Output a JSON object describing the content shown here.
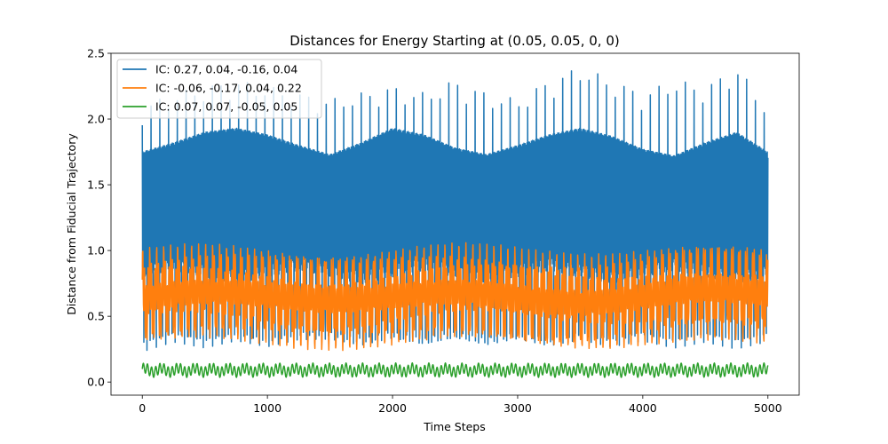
{
  "chart_data": {
    "type": "line",
    "title": "Distances for Energy Starting at (0.05, 0.05, 0, 0)",
    "xlabel": "Time Steps",
    "ylabel": "Distance from Fiducial Trajectory",
    "xlim": [
      -250,
      5250
    ],
    "ylim": [
      -0.1,
      2.5
    ],
    "xticks": [
      0,
      1000,
      2000,
      3000,
      4000,
      5000
    ],
    "xtick_labels": [
      "0",
      "1000",
      "2000",
      "3000",
      "4000",
      "5000"
    ],
    "yticks": [
      0.0,
      0.5,
      1.0,
      1.5,
      2.0,
      2.5
    ],
    "ytick_labels": [
      "0.0",
      "0.5",
      "1.0",
      "1.5",
      "2.0",
      "2.5"
    ],
    "grid": false,
    "legend_position": "top-left",
    "series": [
      {
        "name": "IC: 0.27, 0.04, -0.16, 0.04",
        "color": "#1f77b4",
        "x": [
          0,
          250,
          500,
          750,
          1000,
          1250,
          1500,
          1750,
          2000,
          2250,
          2500,
          2750,
          3000,
          3250,
          3500,
          3750,
          4000,
          4250,
          4500,
          4750,
          5000
        ],
        "y_max": [
          2.1,
          2.2,
          2.25,
          2.3,
          2.25,
          2.2,
          2.15,
          2.2,
          2.25,
          2.2,
          2.3,
          2.2,
          2.15,
          2.3,
          2.4,
          2.3,
          2.2,
          2.3,
          2.25,
          2.4,
          2.1
        ],
        "y_envelope_high": [
          1.75,
          1.82,
          1.9,
          1.93,
          1.88,
          1.8,
          1.73,
          1.82,
          1.93,
          1.88,
          1.78,
          1.73,
          1.8,
          1.88,
          1.93,
          1.87,
          1.77,
          1.72,
          1.82,
          1.9,
          1.75
        ],
        "y_band_low": [
          0.85,
          0.9,
          0.85,
          0.8,
          0.85,
          0.9,
          0.85,
          0.8,
          0.85,
          0.9,
          0.85,
          0.8,
          0.85,
          0.9,
          0.85,
          0.8,
          0.85,
          0.9,
          0.85,
          0.8,
          0.85
        ],
        "y_min": [
          0.23,
          0.3,
          0.25,
          0.3,
          0.25,
          0.3,
          0.3,
          0.25,
          0.3,
          0.25,
          0.3,
          0.25,
          0.3,
          0.25,
          0.3,
          0.25,
          0.3,
          0.25,
          0.3,
          0.25,
          0.3
        ]
      },
      {
        "name": "IC: -0.06, -0.17, 0.04, 0.22",
        "color": "#ff7f0e",
        "x": [
          0,
          5000
        ],
        "y_min": [
          0.23,
          0.25
        ],
        "y_max": [
          1.05,
          1.08
        ],
        "y_mid": [
          0.65,
          0.65
        ]
      },
      {
        "name": "IC: 0.07, 0.07, -0.05, 0.05",
        "color": "#2ca02c",
        "x": [
          0,
          5000
        ],
        "y_min": [
          0.03,
          0.04
        ],
        "y_max": [
          0.14,
          0.15
        ],
        "y_mid": [
          0.09,
          0.09
        ]
      }
    ]
  }
}
